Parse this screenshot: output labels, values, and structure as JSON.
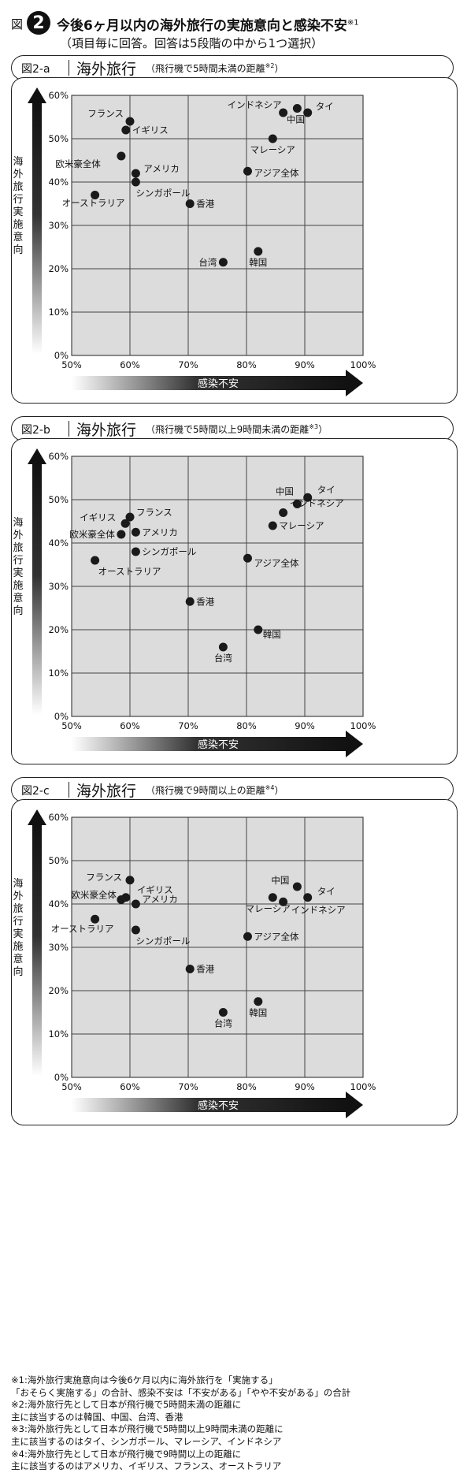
{
  "figure": {
    "prefix": "図",
    "number": "2",
    "title": "今後6ヶ月以内の海外旅行の実施意向と感染不安",
    "title_note": "※1",
    "subtitle": "（項目毎に回答。回答は5段階の中から1つ選択）"
  },
  "colors": {
    "plot_bg": "#dcdcdc",
    "grid": "#444444",
    "dot": "#1a1a1a",
    "text": "#111111"
  },
  "chart_data": [
    {
      "type": "scatter",
      "fig_label": "図2-a",
      "name": "海外旅行",
      "note": "（飛行機で5時間未満の距離",
      "note_mark": "※2",
      "note_close": "）",
      "xlabel": "感染不安",
      "ylabel": "海外旅行実施意向",
      "xlim": [
        50,
        100
      ],
      "ylim": [
        0,
        60
      ],
      "xticks": [
        "50%",
        "60%",
        "70%",
        "80%",
        "90%",
        "100%"
      ],
      "yticks": [
        "0%",
        "10%",
        "20%",
        "30%",
        "40%",
        "50%",
        "60%"
      ],
      "grid": true,
      "points": [
        {
          "label": "フランス",
          "x": 60.0,
          "y": 54.0
        },
        {
          "label": "イギリス",
          "x": 59.3,
          "y": 52.0
        },
        {
          "label": "欧米豪全体",
          "x": 58.5,
          "y": 46.0
        },
        {
          "label": "アメリカ",
          "x": 61.0,
          "y": 42.0
        },
        {
          "label": "シンガポール",
          "x": 61.0,
          "y": 40.0
        },
        {
          "label": "オーストラリア",
          "x": 54.0,
          "y": 37.0
        },
        {
          "label": "香港",
          "x": 70.3,
          "y": 35.0
        },
        {
          "label": "台湾",
          "x": 76.0,
          "y": 21.5
        },
        {
          "label": "韓国",
          "x": 82.0,
          "y": 24.0
        },
        {
          "label": "インドネシア",
          "x": 86.3,
          "y": 56.0
        },
        {
          "label": "中国",
          "x": 88.7,
          "y": 57.0
        },
        {
          "label": "タイ",
          "x": 90.5,
          "y": 56.0
        },
        {
          "label": "マレーシア",
          "x": 84.5,
          "y": 50.0
        },
        {
          "label": "アジア全体",
          "x": 80.2,
          "y": 42.5
        }
      ]
    },
    {
      "type": "scatter",
      "fig_label": "図2-b",
      "name": "海外旅行",
      "note": "（飛行機で5時間以上9時間未満の距離",
      "note_mark": "※3",
      "note_close": "）",
      "xlabel": "感染不安",
      "ylabel": "海外旅行実施意向",
      "xlim": [
        50,
        100
      ],
      "ylim": [
        0,
        60
      ],
      "xticks": [
        "50%",
        "60%",
        "70%",
        "80%",
        "90%",
        "100%"
      ],
      "yticks": [
        "0%",
        "10%",
        "20%",
        "30%",
        "40%",
        "50%",
        "60%"
      ],
      "grid": true,
      "points": [
        {
          "label": "フランス",
          "x": 60.0,
          "y": 46.0
        },
        {
          "label": "イギリス",
          "x": 59.2,
          "y": 44.5
        },
        {
          "label": "欧米豪全体",
          "x": 58.5,
          "y": 42.0
        },
        {
          "label": "アメリカ",
          "x": 61.0,
          "y": 42.5
        },
        {
          "label": "シンガポール",
          "x": 61.0,
          "y": 38.0
        },
        {
          "label": "オーストラリア",
          "x": 54.0,
          "y": 36.0
        },
        {
          "label": "香港",
          "x": 70.3,
          "y": 26.5
        },
        {
          "label": "台湾",
          "x": 76.0,
          "y": 16.0
        },
        {
          "label": "韓国",
          "x": 82.0,
          "y": 20.0
        },
        {
          "label": "中国",
          "x": 88.7,
          "y": 49.0
        },
        {
          "label": "タイ",
          "x": 90.5,
          "y": 50.5
        },
        {
          "label": "インドネシア",
          "x": 86.3,
          "y": 47.0
        },
        {
          "label": "マレーシア",
          "x": 84.5,
          "y": 44.0
        },
        {
          "label": "アジア全体",
          "x": 80.2,
          "y": 36.5
        }
      ]
    },
    {
      "type": "scatter",
      "fig_label": "図2-c",
      "name": "海外旅行",
      "note": "（飛行機で9時間以上の距離",
      "note_mark": "※4",
      "note_close": "）",
      "xlabel": "感染不安",
      "ylabel": "海外旅行実施意向",
      "xlim": [
        50,
        100
      ],
      "ylim": [
        0,
        60
      ],
      "xticks": [
        "50%",
        "60%",
        "70%",
        "80%",
        "90%",
        "100%"
      ],
      "yticks": [
        "0%",
        "10%",
        "20%",
        "30%",
        "40%",
        "50%",
        "60%"
      ],
      "grid": true,
      "points": [
        {
          "label": "フランス",
          "x": 60.0,
          "y": 45.5
        },
        {
          "label": "イギリス",
          "x": 59.3,
          "y": 41.5
        },
        {
          "label": "欧米豪全体",
          "x": 58.5,
          "y": 41.0
        },
        {
          "label": "アメリカ",
          "x": 61.0,
          "y": 40.0
        },
        {
          "label": "シンガポール",
          "x": 61.0,
          "y": 34.0
        },
        {
          "label": "オーストラリア",
          "x": 54.0,
          "y": 36.5
        },
        {
          "label": "香港",
          "x": 70.3,
          "y": 25.0
        },
        {
          "label": "台湾",
          "x": 76.0,
          "y": 15.0
        },
        {
          "label": "韓国",
          "x": 82.0,
          "y": 17.5
        },
        {
          "label": "中国",
          "x": 88.7,
          "y": 44.0
        },
        {
          "label": "タイ",
          "x": 90.5,
          "y": 41.5
        },
        {
          "label": "インドネシア",
          "x": 86.3,
          "y": 40.5
        },
        {
          "label": "マレーシア",
          "x": 84.5,
          "y": 41.5
        },
        {
          "label": "アジア全体",
          "x": 80.2,
          "y": 32.5
        }
      ]
    }
  ],
  "footnotes": [
    "※1:海外旅行実施意向は今後6ケ月以内に海外旅行を「実施する」",
    "「おそらく実施する」の合計、感染不安は「不安がある」「やや不安がある」の合計",
    "※2:海外旅行先として日本が飛行機で5時間未満の距離に",
    "主に該当するのは韓国、中国、台湾、香港",
    "※3:海外旅行先として日本が飛行機で5時間以上9時間未満の距離に",
    "主に該当するのはタイ、シンガポール、マレーシア、インドネシア",
    "※4:海外旅行先として日本が飛行機で9時間以上の距離に",
    "主に該当するのはアメリカ、イギリス、フランス、オーストラリア"
  ]
}
